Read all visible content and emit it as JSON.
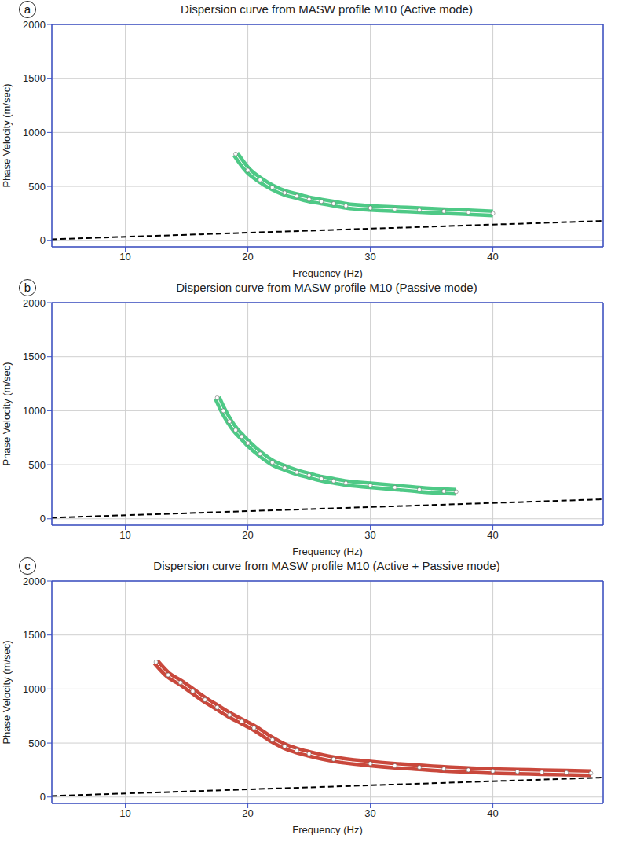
{
  "chart_data": [
    {
      "type": "line",
      "panel_label": "a",
      "title": "Dispersion curve from MASW profile M10 (Active mode)",
      "x_label": "Frequency (Hz)",
      "y_label": "Phase Velocity (m/sec)",
      "xlim": [
        4,
        49
      ],
      "xticks": [
        10,
        20,
        30,
        40
      ],
      "ylim": [
        -60,
        2000
      ],
      "yticks": [
        0,
        500,
        1000,
        1500,
        2000
      ],
      "grid": true,
      "series": [
        {
          "color": "#2fbf71",
          "marker": "circle",
          "line_style": "solid",
          "x": [
            19,
            20,
            21,
            22,
            23,
            24,
            25,
            26,
            27,
            28,
            30,
            32,
            34,
            36,
            38,
            40
          ],
          "values": [
            800,
            650,
            560,
            490,
            440,
            410,
            380,
            360,
            340,
            320,
            300,
            290,
            280,
            270,
            260,
            250
          ]
        },
        {
          "color": "#000000",
          "marker": "none",
          "line_style": "dashed",
          "x": [
            4,
            49
          ],
          "values": [
            10,
            180
          ]
        }
      ]
    },
    {
      "type": "line",
      "panel_label": "b",
      "title": "Dispersion curve from MASW profile M10 (Passive mode)",
      "x_label": "Frequency (Hz)",
      "y_label": "Phase Velocity (m/sec)",
      "xlim": [
        4,
        49
      ],
      "xticks": [
        10,
        20,
        30,
        40
      ],
      "ylim": [
        -60,
        2000
      ],
      "yticks": [
        0,
        500,
        1000,
        1500,
        2000
      ],
      "grid": true,
      "series": [
        {
          "color": "#2fbf71",
          "marker": "circle",
          "line_style": "solid",
          "x": [
            17.5,
            18,
            18.5,
            19,
            19.5,
            20,
            21,
            22,
            23,
            24,
            25,
            26,
            27,
            28,
            30,
            32,
            34,
            36,
            37
          ],
          "values": [
            1120,
            1000,
            900,
            820,
            760,
            700,
            600,
            520,
            470,
            430,
            400,
            370,
            350,
            330,
            310,
            290,
            270,
            255,
            250
          ]
        },
        {
          "color": "#000000",
          "marker": "none",
          "line_style": "dashed",
          "x": [
            4,
            49
          ],
          "values": [
            10,
            180
          ]
        }
      ]
    },
    {
      "type": "line",
      "panel_label": "c",
      "title": "Dispersion curve from MASW profile M10 (Active + Passive mode)",
      "x_label": "Frequency (Hz)",
      "y_label": "Phase Velocity (m/sec)",
      "xlim": [
        4,
        49
      ],
      "xticks": [
        10,
        20,
        30,
        40
      ],
      "ylim": [
        -60,
        2000
      ],
      "yticks": [
        0,
        500,
        1000,
        1500,
        2000
      ],
      "grid": true,
      "series": [
        {
          "color": "#c0281a",
          "marker": "circle",
          "line_style": "solid",
          "x": [
            12.5,
            13.5,
            14.5,
            15.5,
            16.5,
            17.5,
            18.5,
            19.5,
            20.5,
            22,
            23,
            24,
            25,
            27,
            30,
            32,
            34,
            36,
            38,
            40,
            42,
            44,
            46,
            48
          ],
          "values": [
            1250,
            1130,
            1060,
            980,
            900,
            830,
            760,
            700,
            640,
            530,
            470,
            430,
            400,
            350,
            310,
            290,
            275,
            260,
            250,
            240,
            235,
            230,
            225,
            220
          ]
        },
        {
          "color": "#000000",
          "marker": "none",
          "line_style": "dashed",
          "x": [
            4,
            49
          ],
          "values": [
            10,
            180
          ]
        }
      ]
    }
  ]
}
